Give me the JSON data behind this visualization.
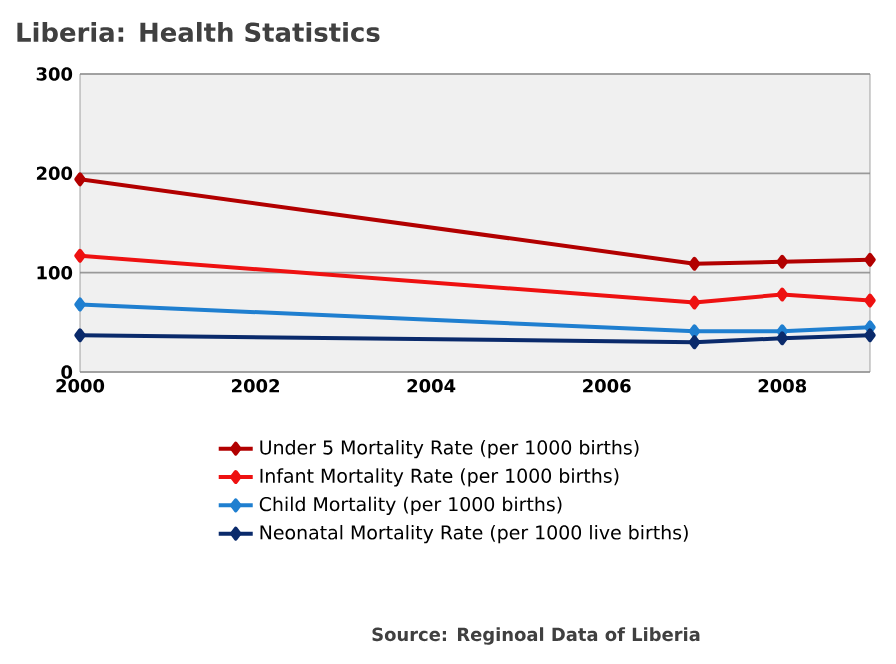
{
  "chart_data": {
    "type": "line",
    "title": "Liberia: Health Statistics",
    "x": [
      2000,
      2007,
      2008,
      2009
    ],
    "series": [
      {
        "name": "Under 5 Mortality Rate (per 1000 births)",
        "color": "#b20000",
        "values": [
          194,
          109,
          111,
          113
        ]
      },
      {
        "name": "Infant Mortality Rate (per 1000 births)",
        "color": "#ee1111",
        "values": [
          117,
          70,
          78,
          72
        ]
      },
      {
        "name": "Child Mortality (per 1000 births)",
        "color": "#1f7fd0",
        "values": [
          68,
          41,
          41,
          45
        ]
      },
      {
        "name": "Neonatal Mortality Rate (per 1000 live births)",
        "color": "#0a2a6b",
        "values": [
          37,
          30,
          34,
          37
        ]
      }
    ],
    "xlim": [
      2000,
      2009
    ],
    "xticks": [
      2000,
      2002,
      2004,
      2006,
      2008
    ],
    "ylim": [
      0,
      300
    ],
    "yticks": [
      0,
      100,
      200,
      300
    ],
    "grid": "y",
    "legend": "bottom",
    "marker": "diamond",
    "line_style": "solid",
    "annotations": [
      "Source: Reginoal Data of Liberia"
    ]
  }
}
